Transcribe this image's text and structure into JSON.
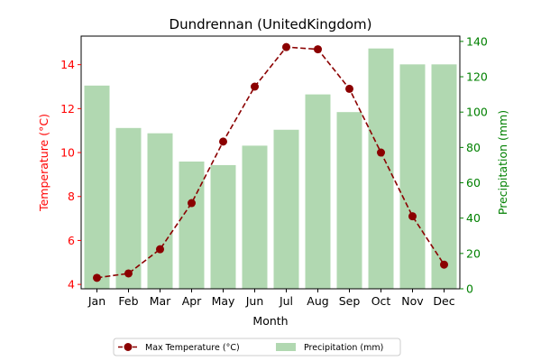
{
  "chart_data": {
    "type": "bar+line",
    "title": "Dundrennan (UnitedKingdom)",
    "xlabel": "Month",
    "ylabel_left": "Temperature (°C)",
    "ylabel_right": "Precipitation (mm)",
    "categories": [
      "Jan",
      "Feb",
      "Mar",
      "Apr",
      "May",
      "Jun",
      "Jul",
      "Aug",
      "Sep",
      "Oct",
      "Nov",
      "Dec"
    ],
    "ylim_left": [
      3.8,
      15.3
    ],
    "ylim_right": [
      0,
      143
    ],
    "yticks_left": [
      4,
      6,
      8,
      10,
      12,
      14
    ],
    "yticks_right": [
      0,
      20,
      40,
      60,
      80,
      100,
      120,
      140
    ],
    "grid": false,
    "legend_position": "bottom-center",
    "series": [
      {
        "name": "Max Temperature (°C)",
        "kind": "line",
        "axis": "left",
        "color": "#8b0000",
        "values": [
          4.3,
          4.5,
          5.6,
          7.7,
          10.5,
          13.0,
          14.8,
          14.7,
          12.9,
          10.0,
          7.1,
          4.9
        ]
      },
      {
        "name": "Precipitation (mm)",
        "kind": "bar",
        "axis": "right",
        "color": "#b1d8b1",
        "values": [
          115,
          91,
          88,
          72,
          70,
          81,
          90,
          110,
          100,
          136,
          127,
          127
        ]
      }
    ],
    "axis_colors": {
      "left": "#ff0000",
      "right": "#008000",
      "bottom": "#000000"
    }
  }
}
